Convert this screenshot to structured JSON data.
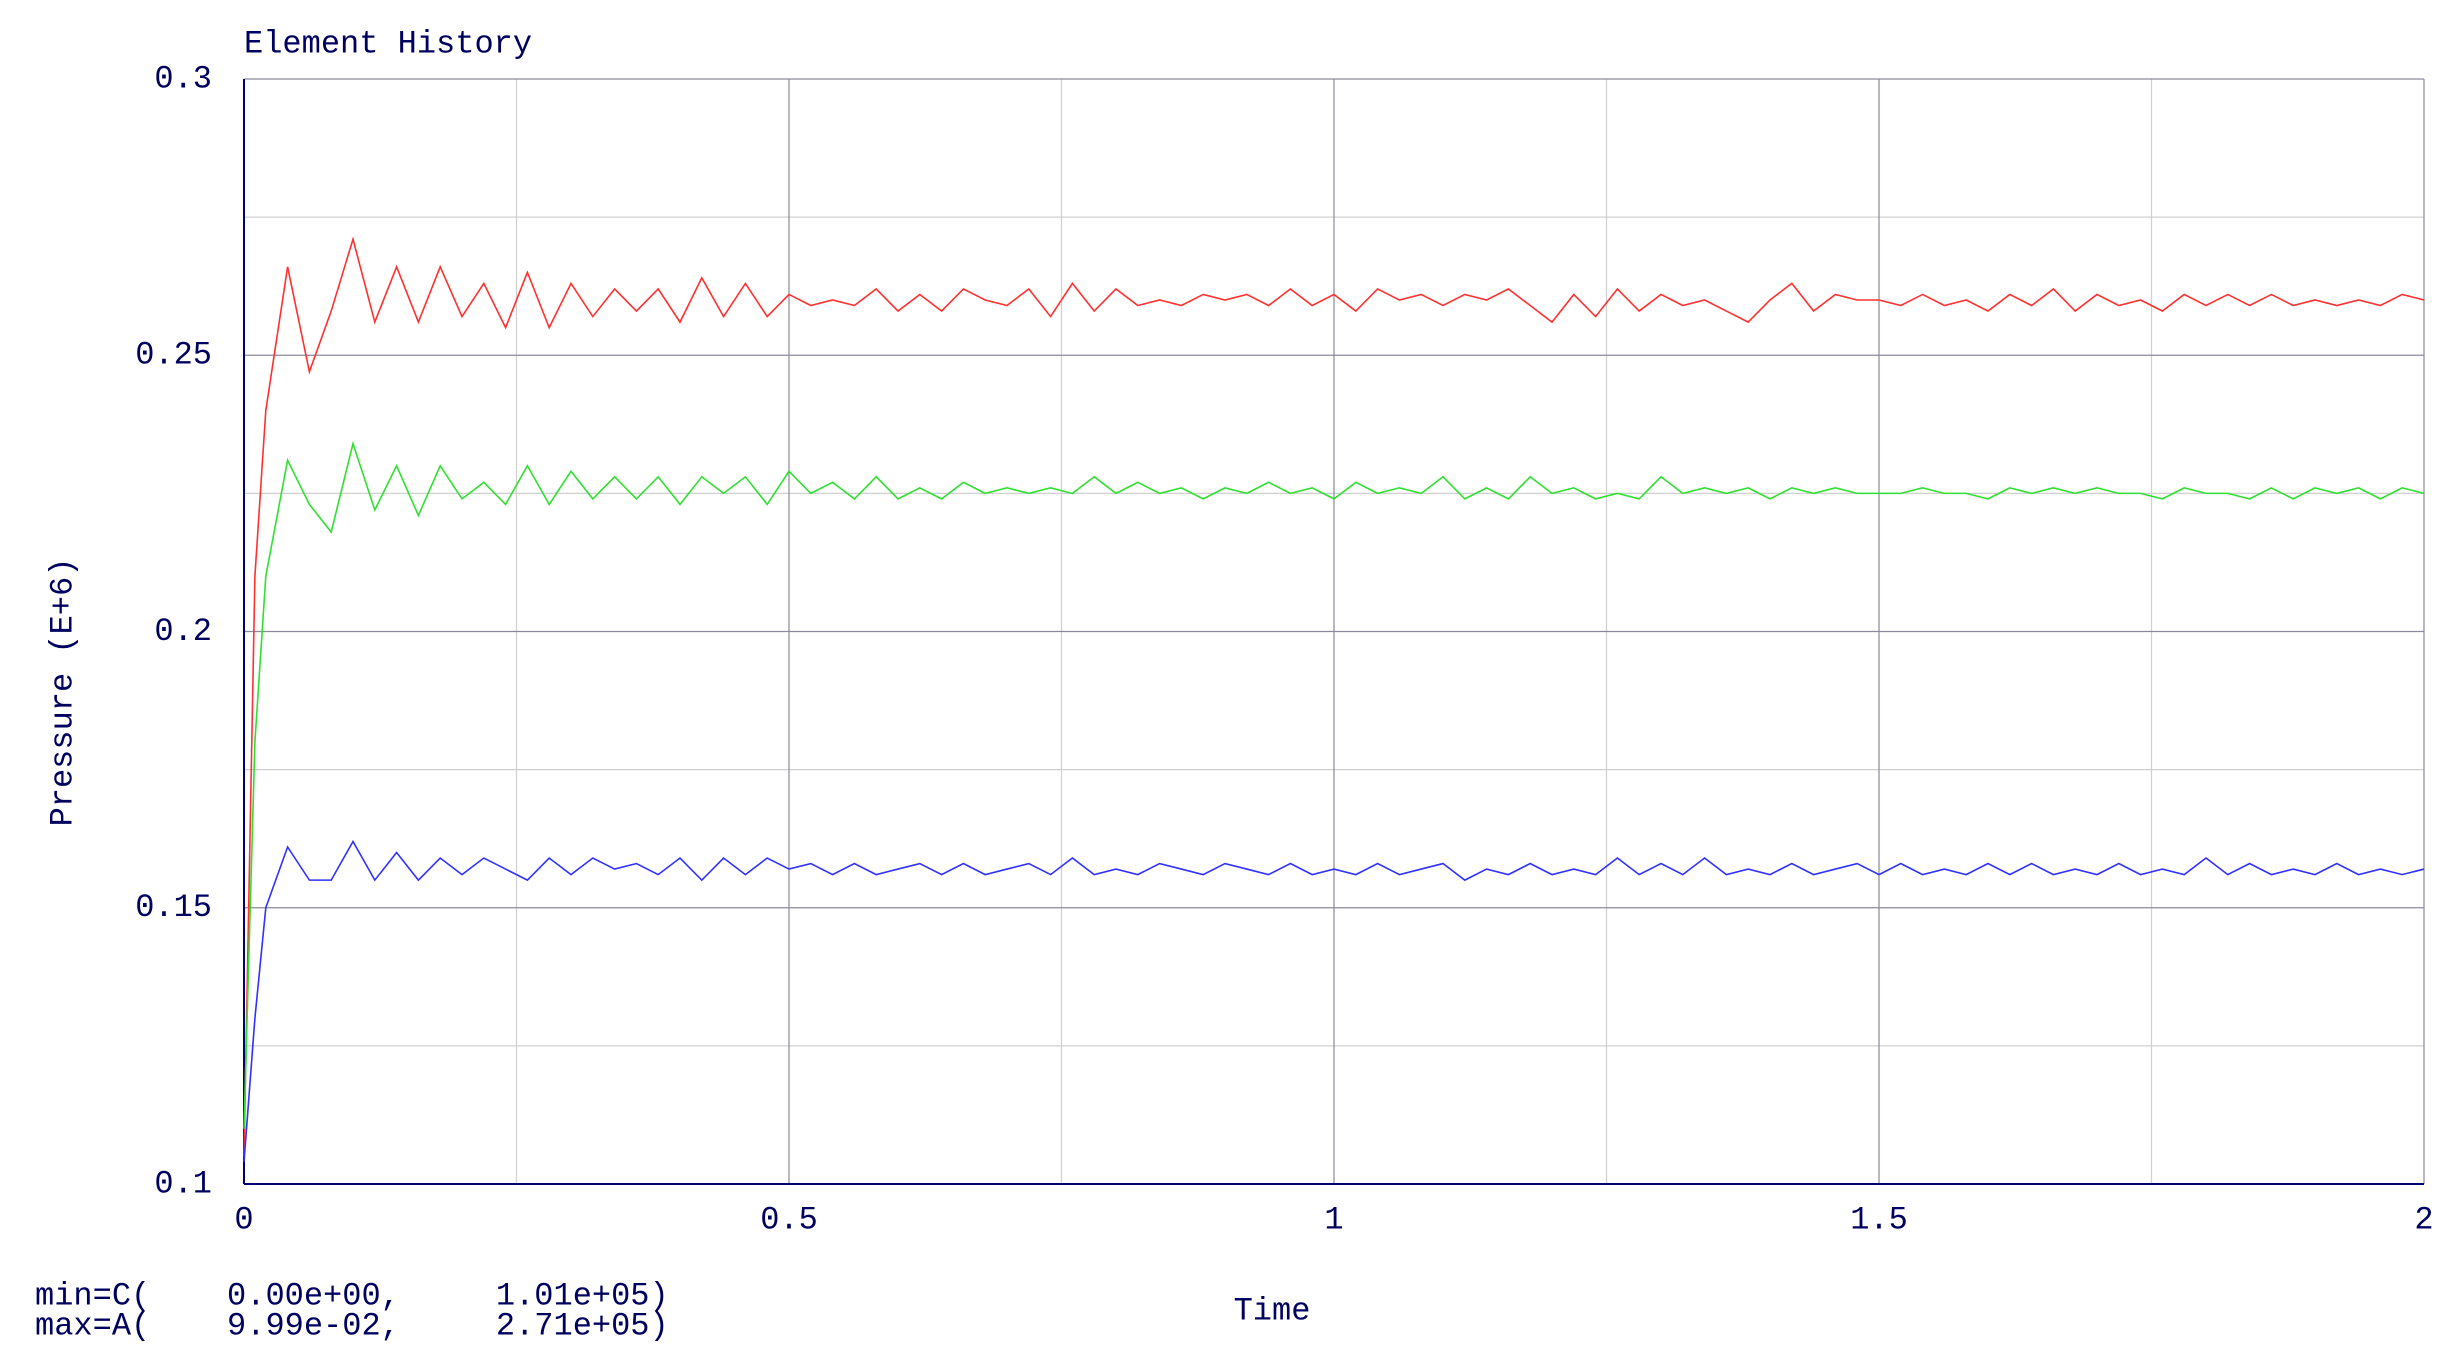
{
  "chart_data": {
    "type": "line",
    "title": "Element History",
    "y_label": "Pressure (E+6)",
    "x_label": "Time",
    "annotations": [
      "min=C(    0.00e+00,     1.01e+05)",
      "max=A(    9.99e-02,     2.71e+05)"
    ],
    "xlim": [
      0,
      2
    ],
    "ylim": [
      0.1,
      0.3
    ],
    "xticks": [
      0,
      0.5,
      1,
      1.5,
      2
    ],
    "yticks": [
      0.1,
      0.15,
      0.2,
      0.25,
      0.3
    ],
    "minor_xticks": [
      0.25,
      0.75,
      1.25,
      1.75
    ],
    "minor_yticks": [
      0.125,
      0.175,
      0.225,
      0.275
    ],
    "grid": true,
    "x": [
      0,
      0.01,
      0.02,
      0.04,
      0.06,
      0.08,
      0.1,
      0.12,
      0.14,
      0.16,
      0.18,
      0.2,
      0.22,
      0.24,
      0.26,
      0.28,
      0.3,
      0.32,
      0.34,
      0.36,
      0.38,
      0.4,
      0.42,
      0.44,
      0.46,
      0.48,
      0.5,
      0.52,
      0.54,
      0.56,
      0.58,
      0.6,
      0.62,
      0.64,
      0.66,
      0.68,
      0.7,
      0.72,
      0.74,
      0.76,
      0.78,
      0.8,
      0.82,
      0.84,
      0.86,
      0.88,
      0.9,
      0.92,
      0.94,
      0.96,
      0.98,
      1,
      1.02,
      1.04,
      1.06,
      1.08,
      1.1,
      1.12,
      1.14,
      1.16,
      1.18,
      1.2,
      1.22,
      1.24,
      1.26,
      1.28,
      1.3,
      1.32,
      1.34,
      1.36,
      1.38,
      1.4,
      1.42,
      1.44,
      1.46,
      1.48,
      1.5,
      1.52,
      1.54,
      1.56,
      1.58,
      1.6,
      1.62,
      1.64,
      1.66,
      1.68,
      1.7,
      1.72,
      1.74,
      1.76,
      1.78,
      1.8,
      1.82,
      1.84,
      1.86,
      1.88,
      1.9,
      1.92,
      1.94,
      1.96,
      1.98,
      2
    ],
    "series": [
      {
        "color": "#ff3030",
        "values": [
          0.105,
          0.21,
          0.24,
          0.266,
          0.247,
          0.258,
          0.271,
          0.256,
          0.266,
          0.256,
          0.266,
          0.257,
          0.263,
          0.255,
          0.265,
          0.255,
          0.263,
          0.257,
          0.262,
          0.258,
          0.262,
          0.256,
          0.264,
          0.257,
          0.263,
          0.257,
          0.261,
          0.259,
          0.26,
          0.259,
          0.262,
          0.258,
          0.261,
          0.258,
          0.262,
          0.26,
          0.259,
          0.262,
          0.257,
          0.263,
          0.258,
          0.262,
          0.259,
          0.26,
          0.259,
          0.261,
          0.26,
          0.261,
          0.259,
          0.262,
          0.259,
          0.261,
          0.258,
          0.262,
          0.26,
          0.261,
          0.259,
          0.261,
          0.26,
          0.262,
          0.259,
          0.256,
          0.261,
          0.257,
          0.262,
          0.258,
          0.261,
          0.259,
          0.26,
          0.258,
          0.256,
          0.26,
          0.263,
          0.258,
          0.261,
          0.26,
          0.26,
          0.259,
          0.261,
          0.259,
          0.26,
          0.258,
          0.261,
          0.259,
          0.262,
          0.258,
          0.261,
          0.259,
          0.26,
          0.258,
          0.261,
          0.259,
          0.261,
          0.259,
          0.261,
          0.259,
          0.26,
          0.259,
          0.26,
          0.259,
          0.261,
          0.26
        ]
      },
      {
        "color": "#30e030",
        "values": [
          0.11,
          0.18,
          0.21,
          0.231,
          0.223,
          0.218,
          0.234,
          0.222,
          0.23,
          0.221,
          0.23,
          0.224,
          0.227,
          0.223,
          0.23,
          0.223,
          0.229,
          0.224,
          0.228,
          0.224,
          0.228,
          0.223,
          0.228,
          0.225,
          0.228,
          0.223,
          0.229,
          0.225,
          0.227,
          0.224,
          0.228,
          0.224,
          0.226,
          0.224,
          0.227,
          0.225,
          0.226,
          0.225,
          0.226,
          0.225,
          0.228,
          0.225,
          0.227,
          0.225,
          0.226,
          0.224,
          0.226,
          0.225,
          0.227,
          0.225,
          0.226,
          0.224,
          0.227,
          0.225,
          0.226,
          0.225,
          0.228,
          0.224,
          0.226,
          0.224,
          0.228,
          0.225,
          0.226,
          0.224,
          0.225,
          0.224,
          0.228,
          0.225,
          0.226,
          0.225,
          0.226,
          0.224,
          0.226,
          0.225,
          0.226,
          0.225,
          0.225,
          0.225,
          0.226,
          0.225,
          0.225,
          0.224,
          0.226,
          0.225,
          0.226,
          0.225,
          0.226,
          0.225,
          0.225,
          0.224,
          0.226,
          0.225,
          0.225,
          0.224,
          0.226,
          0.224,
          0.226,
          0.225,
          0.226,
          0.224,
          0.226,
          0.225
        ]
      },
      {
        "color": "#3030ff",
        "values": [
          0.104,
          0.13,
          0.15,
          0.161,
          0.155,
          0.155,
          0.162,
          0.155,
          0.16,
          0.155,
          0.159,
          0.156,
          0.159,
          0.157,
          0.155,
          0.159,
          0.156,
          0.159,
          0.157,
          0.158,
          0.156,
          0.159,
          0.155,
          0.159,
          0.156,
          0.159,
          0.157,
          0.158,
          0.156,
          0.158,
          0.156,
          0.157,
          0.158,
          0.156,
          0.158,
          0.156,
          0.157,
          0.158,
          0.156,
          0.159,
          0.156,
          0.157,
          0.156,
          0.158,
          0.157,
          0.156,
          0.158,
          0.157,
          0.156,
          0.158,
          0.156,
          0.157,
          0.156,
          0.158,
          0.156,
          0.157,
          0.158,
          0.155,
          0.157,
          0.156,
          0.158,
          0.156,
          0.157,
          0.156,
          0.159,
          0.156,
          0.158,
          0.156,
          0.159,
          0.156,
          0.157,
          0.156,
          0.158,
          0.156,
          0.157,
          0.158,
          0.156,
          0.158,
          0.156,
          0.157,
          0.156,
          0.158,
          0.156,
          0.158,
          0.156,
          0.157,
          0.156,
          0.158,
          0.156,
          0.157,
          0.156,
          0.159,
          0.156,
          0.158,
          0.156,
          0.157,
          0.156,
          0.158,
          0.156,
          0.157,
          0.156,
          0.157
        ]
      }
    ]
  }
}
